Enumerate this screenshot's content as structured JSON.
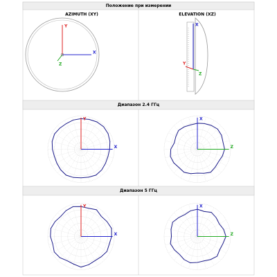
{
  "header": {
    "title": "Положение при измерении"
  },
  "positions": [
    {
      "title": "AZIMUTH (XY)",
      "axes": [
        "X",
        "Y",
        "Z"
      ]
    },
    {
      "title": "ELEVATION (XZ)",
      "axes": [
        "X",
        "Y",
        "Z"
      ]
    }
  ],
  "bands": [
    {
      "title": "Диапазон 2.4 ГГц",
      "plots": [
        {
          "axes": [
            "X",
            "Y"
          ],
          "color": "#1c1c8a",
          "rlim": [
            0,
            1
          ],
          "radii": [
            0.92,
            0.93,
            0.95,
            0.96,
            0.94,
            0.9,
            0.86,
            0.84,
            0.85,
            0.88,
            0.9,
            0.87,
            0.86,
            0.88,
            0.9,
            0.87,
            0.84,
            0.83,
            0.86,
            0.9,
            0.92,
            0.9,
            0.89,
            0.91
          ]
        },
        {
          "axes": [
            "Z",
            "X"
          ],
          "color": "#1c1c8a",
          "rlim": [
            0,
            1
          ],
          "radii": [
            0.78,
            0.8,
            0.83,
            0.86,
            0.84,
            0.8,
            0.82,
            0.78,
            0.74,
            0.76,
            0.8,
            0.75,
            0.72,
            0.76,
            0.8,
            0.78,
            0.82,
            0.84,
            0.8,
            0.72,
            0.75,
            0.8,
            0.78,
            0.76
          ]
        }
      ]
    },
    {
      "title": "Диапазон 5 ГГц",
      "plots": [
        {
          "axes": [
            "X",
            "Y"
          ],
          "color": "#1c1c8a",
          "rlim": [
            0,
            1
          ],
          "radii": [
            0.9,
            0.88,
            0.93,
            0.86,
            0.9,
            0.95,
            0.92,
            0.88,
            0.9,
            0.86,
            0.84,
            0.88,
            0.92,
            0.86,
            0.84,
            0.9,
            0.93,
            0.88,
            0.92,
            0.94,
            0.9,
            0.86,
            0.9,
            0.93
          ]
        },
        {
          "axes": [
            "Z",
            "X"
          ],
          "color": "#1c1c8a",
          "rlim": [
            0,
            1
          ],
          "radii": [
            0.82,
            0.78,
            0.84,
            0.8,
            0.76,
            0.82,
            0.86,
            0.8,
            0.78,
            0.84,
            0.8,
            0.76,
            0.78,
            0.82,
            0.8,
            0.76,
            0.8,
            0.84,
            0.78,
            0.82,
            0.86,
            0.8,
            0.76,
            0.8
          ]
        }
      ]
    }
  ]
}
